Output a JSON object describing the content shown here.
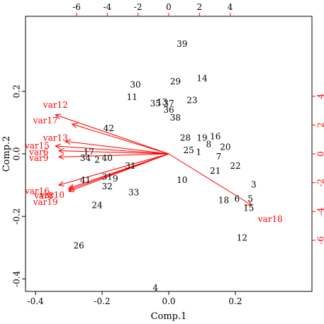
{
  "chart_data": {
    "type": "scatter",
    "xlabel": "Comp.1",
    "ylabel": "Comp.2",
    "xlim": [
      -0.43,
      0.43
    ],
    "ylim": [
      -0.44,
      0.44
    ],
    "bottom_ticks": [
      "-0.4",
      "-0.2",
      "0.0",
      "0.2"
    ],
    "left_ticks": [
      "-0.4",
      "-0.2",
      "0.0",
      "0.2"
    ],
    "top_ticks": [
      "-6",
      "-4",
      "-2",
      "0",
      "2",
      "4"
    ],
    "right_ticks": [
      "-6",
      "-4",
      "-2",
      "0",
      "2",
      "4"
    ],
    "points": [
      {
        "label": "39",
        "x": 0.04,
        "y": 0.35
      },
      {
        "label": "14",
        "x": 0.1,
        "y": 0.24
      },
      {
        "label": "29",
        "x": 0.02,
        "y": 0.23
      },
      {
        "label": "30",
        "x": -0.1,
        "y": 0.22
      },
      {
        "label": "11",
        "x": -0.11,
        "y": 0.18
      },
      {
        "label": "23",
        "x": 0.07,
        "y": 0.17
      },
      {
        "label": "35",
        "x": -0.04,
        "y": 0.16
      },
      {
        "label": "13",
        "x": -0.02,
        "y": 0.165
      },
      {
        "label": "37",
        "x": 0.0,
        "y": 0.16
      },
      {
        "label": "36",
        "x": 0.0,
        "y": 0.14
      },
      {
        "label": "38",
        "x": 0.02,
        "y": 0.115
      },
      {
        "label": "42",
        "x": -0.18,
        "y": 0.08
      },
      {
        "label": "28",
        "x": 0.05,
        "y": 0.05
      },
      {
        "label": "19",
        "x": 0.1,
        "y": 0.05
      },
      {
        "label": "16",
        "x": 0.14,
        "y": 0.055
      },
      {
        "label": "8",
        "x": 0.12,
        "y": 0.03
      },
      {
        "label": "20",
        "x": 0.17,
        "y": 0.02
      },
      {
        "label": "25",
        "x": 0.06,
        "y": 0.01
      },
      {
        "label": "1",
        "x": 0.09,
        "y": 0.005
      },
      {
        "label": "7",
        "x": 0.15,
        "y": -0.01
      },
      {
        "label": "17",
        "x": -0.24,
        "y": 0.005
      },
      {
        "label": "34",
        "x": -0.25,
        "y": -0.015
      },
      {
        "label": "2",
        "x": -0.215,
        "y": -0.02
      },
      {
        "label": "40",
        "x": -0.185,
        "y": -0.015
      },
      {
        "label": "22",
        "x": 0.2,
        "y": -0.04
      },
      {
        "label": "21",
        "x": 0.14,
        "y": -0.055
      },
      {
        "label": "31",
        "x": -0.115,
        "y": -0.04
      },
      {
        "label": "31",
        "x": -0.185,
        "y": -0.075
      },
      {
        "label": "9",
        "x": -0.16,
        "y": -0.08
      },
      {
        "label": "41",
        "x": -0.25,
        "y": -0.085
      },
      {
        "label": "10",
        "x": 0.04,
        "y": -0.085
      },
      {
        "label": "32",
        "x": -0.185,
        "y": -0.105
      },
      {
        "label": "3",
        "x": 0.255,
        "y": -0.1
      },
      {
        "label": "33",
        "x": -0.105,
        "y": -0.125
      },
      {
        "label": "6",
        "x": 0.205,
        "y": -0.145
      },
      {
        "label": "5",
        "x": 0.245,
        "y": -0.145
      },
      {
        "label": "18",
        "x": 0.165,
        "y": -0.15
      },
      {
        "label": "24",
        "x": -0.215,
        "y": -0.165
      },
      {
        "label": "15",
        "x": 0.24,
        "y": -0.175
      },
      {
        "label": "12",
        "x": 0.22,
        "y": -0.27
      },
      {
        "label": "26",
        "x": -0.27,
        "y": -0.295
      },
      {
        "label": "4",
        "x": -0.04,
        "y": -0.43
      }
    ],
    "arrows": [
      {
        "label": "var12",
        "x": -0.34,
        "y": 0.125,
        "lx": -0.34,
        "ly": 0.155
      },
      {
        "label": "var17",
        "x": -0.29,
        "y": 0.095,
        "lx": -0.37,
        "ly": 0.105
      },
      {
        "label": "var13",
        "x": -0.31,
        "y": 0.04,
        "lx": -0.34,
        "ly": 0.05
      },
      {
        "label": "var15",
        "x": -0.34,
        "y": 0.025,
        "lx": -0.395,
        "ly": 0.025
      },
      {
        "label": "var6",
        "x": -0.33,
        "y": 0.01,
        "lx": -0.39,
        "ly": 0.005
      },
      {
        "label": "var9",
        "x": -0.33,
        "y": -0.01,
        "lx": -0.39,
        "ly": -0.015
      },
      {
        "label": "var16",
        "x": -0.33,
        "y": -0.1,
        "lx": -0.395,
        "ly": -0.12
      },
      {
        "label": "var8",
        "x": -0.3,
        "y": -0.11,
        "lx": -0.375,
        "ly": -0.135
      },
      {
        "label": "var10",
        "x": -0.3,
        "y": -0.115,
        "lx": -0.35,
        "ly": -0.133
      },
      {
        "label": "var19",
        "x": -0.3,
        "y": -0.12,
        "lx": -0.37,
        "ly": -0.155
      },
      {
        "label": "var18",
        "x": 0.25,
        "y": -0.165,
        "lx": 0.305,
        "ly": -0.21
      }
    ],
    "point_color": "#000000",
    "arrow_color": "#ff0000"
  }
}
